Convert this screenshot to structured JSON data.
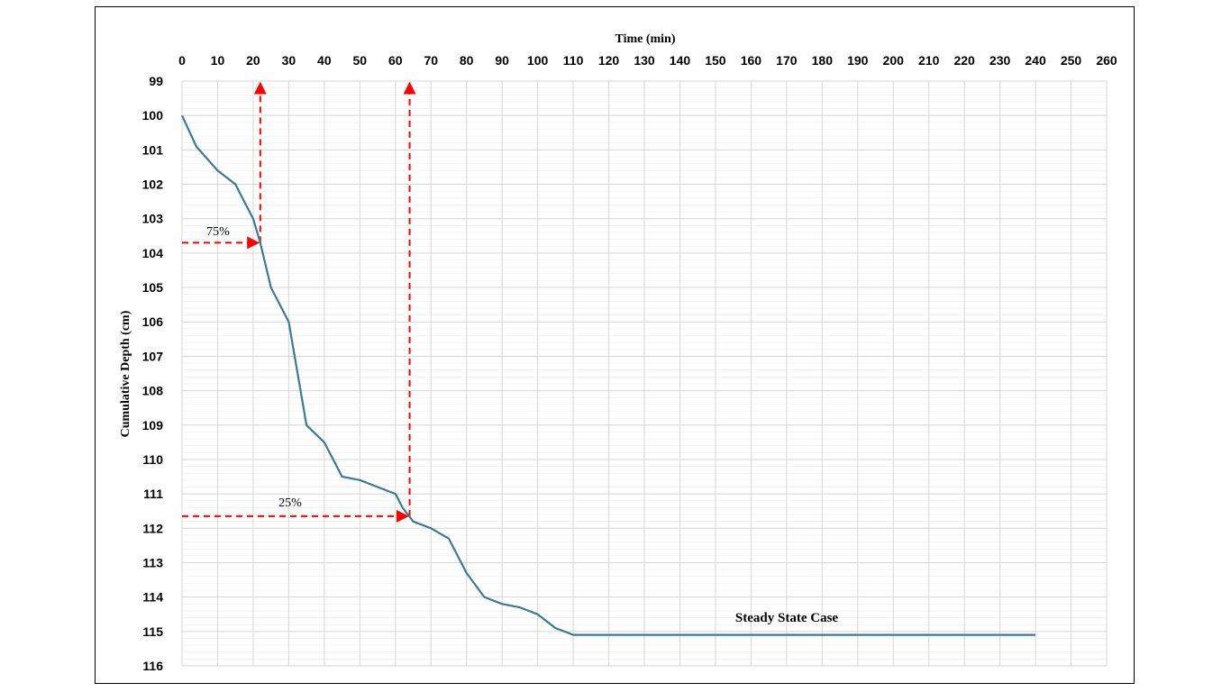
{
  "chart_data": {
    "type": "line",
    "title": "",
    "xlabel": "Time (min)",
    "ylabel": "Cumulative Depth (cm)",
    "xlim": [
      0,
      260
    ],
    "ylim": [
      99,
      116
    ],
    "y_inverted": true,
    "x_axis_position": "top",
    "x_ticks": [
      0,
      10,
      20,
      30,
      40,
      50,
      60,
      70,
      80,
      90,
      100,
      110,
      120,
      130,
      140,
      150,
      160,
      170,
      180,
      190,
      200,
      210,
      220,
      230,
      240,
      250,
      260
    ],
    "y_ticks": [
      99,
      100,
      101,
      102,
      103,
      104,
      105,
      106,
      107,
      108,
      109,
      110,
      111,
      112,
      113,
      114,
      115,
      116
    ],
    "grid": true,
    "series": [
      {
        "color": "#3b7a95",
        "x": [
          0,
          4,
          10,
          15,
          20,
          22,
          25,
          30,
          35,
          40,
          45,
          50,
          55,
          60,
          62,
          65,
          70,
          75,
          80,
          85,
          90,
          95,
          100,
          105,
          110,
          240
        ],
        "y": [
          100,
          100.9,
          101.6,
          102,
          103,
          103.7,
          105,
          106,
          109,
          109.5,
          110.5,
          110.6,
          110.8,
          111,
          111.4,
          111.8,
          112,
          112.3,
          113.3,
          114,
          114.2,
          114.3,
          114.5,
          114.9,
          115.1,
          115.1
        ]
      }
    ],
    "annotations": [
      {
        "text": "75%",
        "x": 22,
        "y": 103.7,
        "color": "#ff0000"
      },
      {
        "text": "25%",
        "x": 64,
        "y": 111.65,
        "color": "#ff0000"
      },
      {
        "text": "Steady State Case"
      }
    ]
  }
}
